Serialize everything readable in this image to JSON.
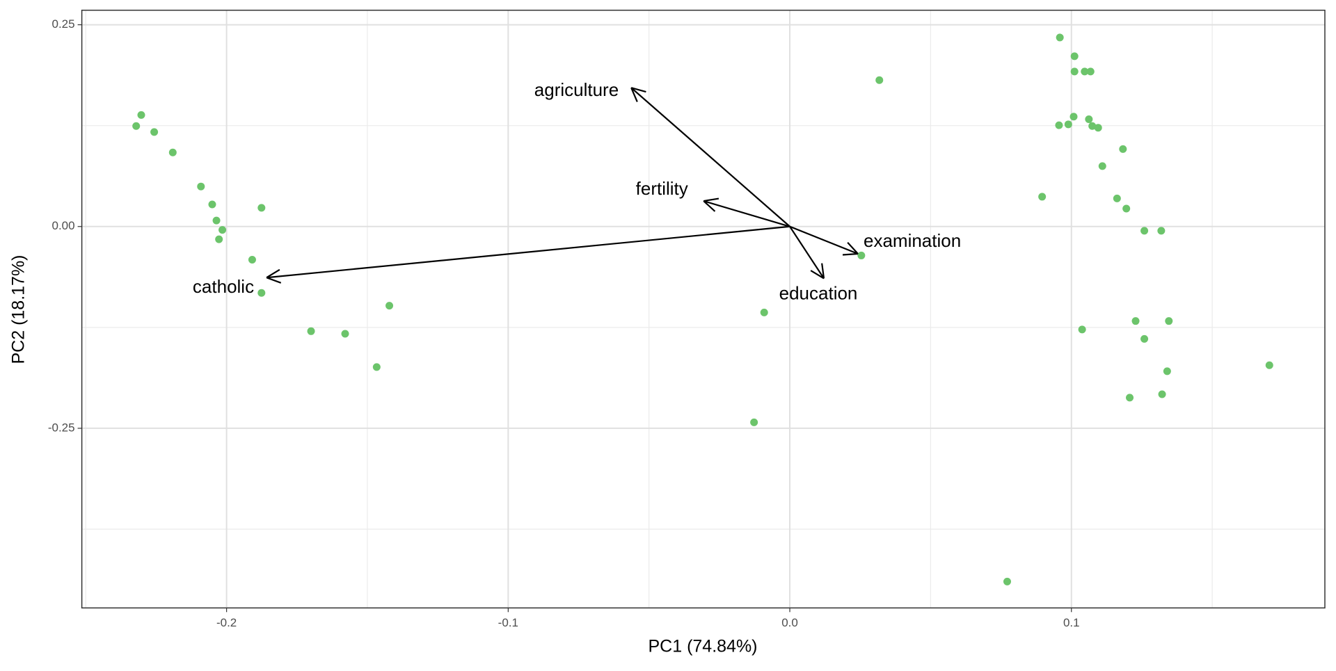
{
  "chart_data": {
    "type": "biplot",
    "x_label": "PC1 (74.84%)",
    "y_label": "PC2 (18.17%)",
    "xlim": [
      -0.2514,
      0.19
    ],
    "ylim": [
      -0.4726,
      0.268
    ],
    "xticks": [
      -0.2,
      -0.1,
      {
        "value": 0,
        "label": "0.0"
      },
      0.1
    ],
    "yticks": [
      0.25,
      {
        "value": 0,
        "label": "0.00"
      },
      -0.25
    ],
    "x_minor_ticks": [
      -0.25,
      -0.15,
      -0.05,
      0.05,
      0.15
    ],
    "y_minor_ticks": [
      0.125,
      -0.125,
      -0.375
    ],
    "grid": true,
    "color": "#6cc46b",
    "x": [
      -0.2321,
      -0.2303,
      -0.2257,
      -0.2191,
      -0.2091,
      -0.2051,
      -0.2036,
      -0.2015,
      -0.2027,
      -0.1876,
      -0.1909,
      -0.1876,
      -0.17,
      -0.1579,
      -0.1422,
      -0.1467,
      0.0318,
      0.0254,
      -0.0091,
      -0.0127,
      0.0772,
      0.0959,
      0.1011,
      0.1011,
      0.1047,
      0.1068,
      0.0956,
      0.0989,
      0.1008,
      0.1062,
      0.1074,
      0.1095,
      0.1183,
      0.111,
      0.0896,
      0.1162,
      0.1195,
      0.1259,
      0.1319,
      0.1038,
      0.1228,
      0.1346,
      0.1259,
      0.134,
      0.1207,
      0.1322,
      0.1703
    ],
    "y": [
      0.1245,
      0.1382,
      0.1171,
      0.0918,
      0.0496,
      0.0274,
      0.0074,
      -0.0042,
      -0.0158,
      0.0232,
      -0.0411,
      -0.0823,
      -0.1297,
      -0.1329,
      -0.0981,
      -0.1741,
      0.1814,
      -0.0359,
      -0.1065,
      -0.2426,
      -0.4399,
      0.2342,
      0.211,
      0.192,
      0.192,
      0.192,
      0.1255,
      0.1266,
      0.1361,
      0.1329,
      0.1245,
      0.1224,
      0.096,
      0.0749,
      0.0369,
      0.0348,
      0.0222,
      -0.0053,
      -0.0053,
      -0.1276,
      -0.1171,
      -0.1171,
      -0.1392,
      -0.1793,
      -0.212,
      -0.2078,
      -0.1719
    ],
    "arrows": [
      {
        "name": "agriculture",
        "x": -0.0563,
        "y": 0.1719
      },
      {
        "name": "fertility",
        "x": -0.0306,
        "y": 0.0316
      },
      {
        "name": "catholic",
        "x": -0.1858,
        "y": -0.0633
      },
      {
        "name": "examination",
        "x": 0.0242,
        "y": -0.0338
      },
      {
        "name": "education",
        "x": 0.0121,
        "y": -0.0643
      }
    ]
  }
}
